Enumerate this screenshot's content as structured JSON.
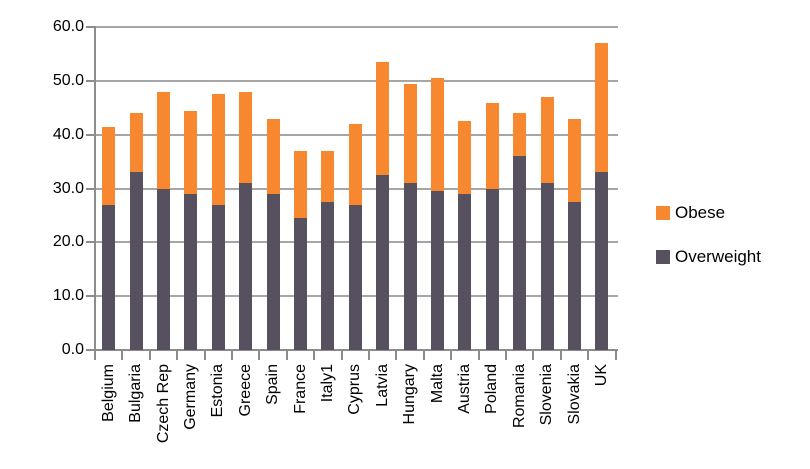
{
  "chart_data": {
    "type": "bar",
    "stacked": true,
    "orientation": "vertical",
    "title": "",
    "xlabel": "",
    "ylabel": "",
    "grid": true,
    "x_label_rotation": -90,
    "ylim": [
      0,
      60
    ],
    "ytick_step": 10,
    "ytick_labels": [
      "0.0",
      "10.0",
      "20.0",
      "30.0",
      "40.0",
      "50.0",
      "60.0"
    ],
    "categories": [
      "Belgium",
      "Bulgaria",
      "Czech Rep",
      "Germany",
      "Estonia",
      "Greece",
      "Spain",
      "France",
      "Italy1",
      "Cyprus",
      "Latvia",
      "Hungary",
      "Malta",
      "Austria",
      "Poland",
      "Romania",
      "Slovenia",
      "Slovakia",
      "UK"
    ],
    "series": [
      {
        "name": "Overweight",
        "color": "#57505F",
        "values": [
          27.0,
          33.0,
          30.0,
          29.0,
          27.0,
          31.0,
          29.0,
          24.5,
          27.5,
          27.0,
          32.5,
          31.0,
          29.5,
          29.0,
          30.0,
          36.0,
          31.0,
          27.5,
          33.0
        ]
      },
      {
        "name": "Obese",
        "color": "#F7882F",
        "values": [
          14.5,
          11.0,
          18.0,
          15.5,
          20.5,
          17.0,
          14.0,
          12.5,
          9.5,
          15.0,
          21.0,
          18.5,
          21.0,
          13.5,
          16.0,
          8.0,
          16.0,
          15.5,
          24.0
        ]
      }
    ],
    "totals": [
      41.5,
      44.0,
      48.0,
      44.5,
      47.5,
      48.0,
      43.0,
      37.0,
      37.0,
      42.0,
      53.5,
      49.5,
      50.5,
      42.5,
      46.0,
      44.0,
      47.0,
      43.0,
      57.0
    ],
    "legend": {
      "position": "right",
      "entries": [
        "Obese",
        "Overweight"
      ]
    }
  },
  "colors": {
    "background": "#FFFFFF",
    "gridline": "#A6A6A6",
    "axis": "#8C8C8C",
    "text": "#000000",
    "obese": "#F7882F",
    "overweight": "#57505F"
  }
}
